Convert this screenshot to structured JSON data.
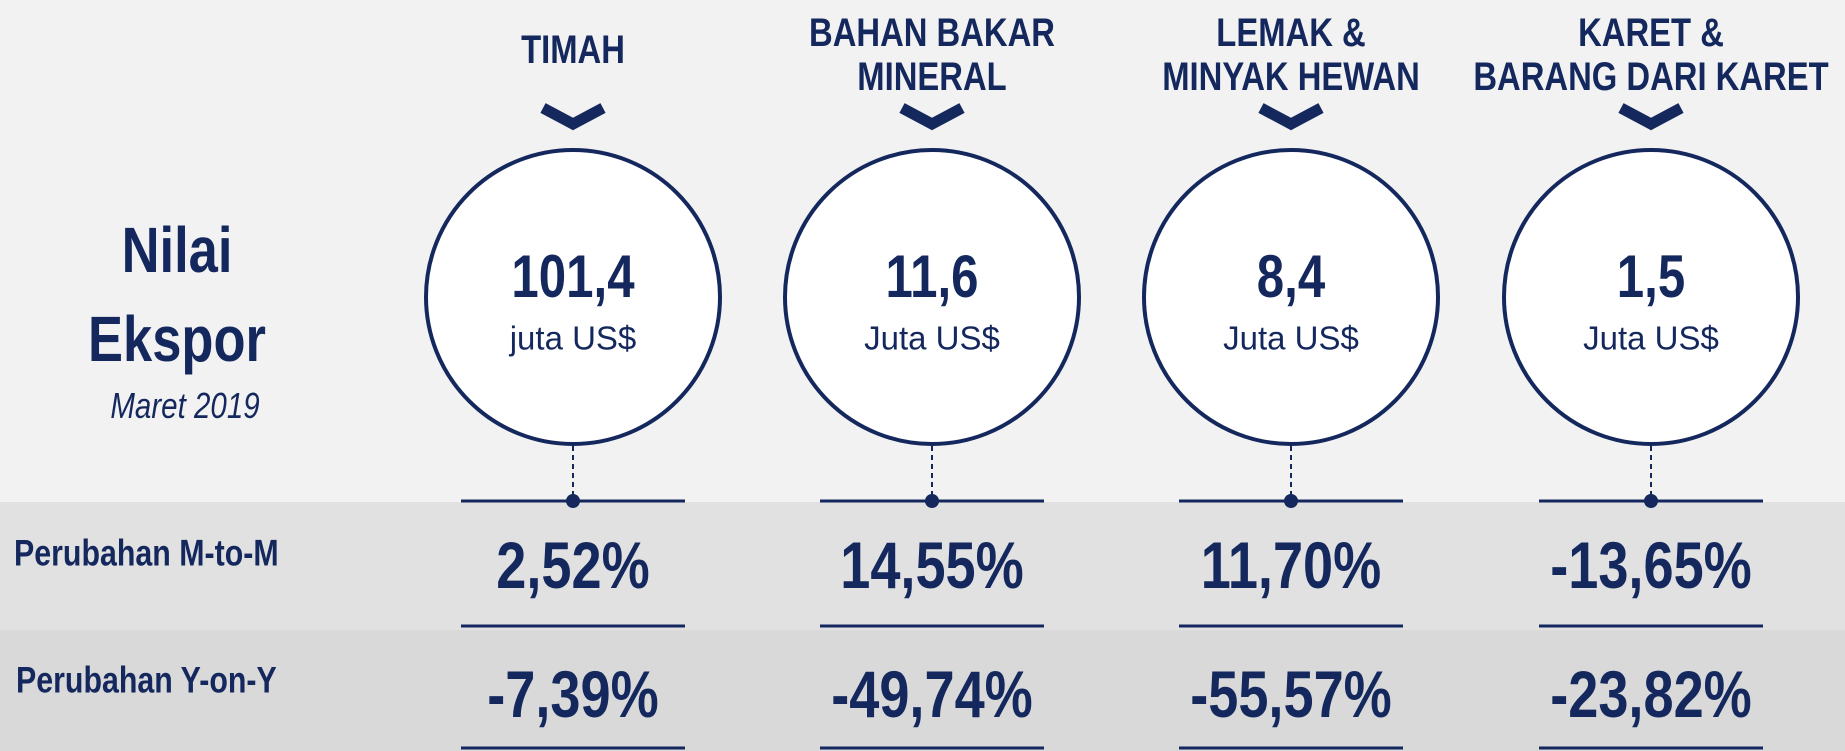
{
  "header": {
    "title": [
      "Nilai",
      "Ekspor"
    ],
    "subtitle": "Maret 2019"
  },
  "row_labels": [
    "Perubahan M-to-M",
    "Perubahan Y-on-Y"
  ],
  "columns": [
    {
      "title": [
        "TIMAH"
      ],
      "value": "101,4",
      "unit": "juta US$",
      "m_to_m": "2,52%",
      "y_on_y": "-7,39%"
    },
    {
      "title": [
        "BAHAN BAKAR",
        "MINERAL"
      ],
      "value": "11,6",
      "unit": "Juta US$",
      "m_to_m": "14,55%",
      "y_on_y": "-49,74%"
    },
    {
      "title": [
        "LEMAK &",
        "MINYAK HEWAN"
      ],
      "value": "8,4",
      "unit": "Juta US$",
      "m_to_m": "11,70%",
      "y_on_y": "-55,57%"
    },
    {
      "title": [
        "KARET &",
        "BARANG DARI KARET"
      ],
      "value": "1,5",
      "unit": "Juta US$",
      "m_to_m": "-13,65%",
      "y_on_y": "-23,82%"
    }
  ]
}
